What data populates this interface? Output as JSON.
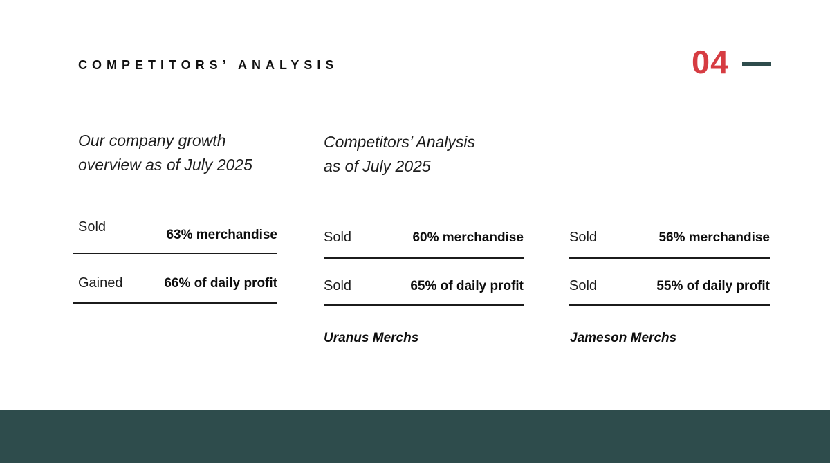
{
  "colors": {
    "accent-red": "#d63c42",
    "teal": "#2e4c4c"
  },
  "header": {
    "title": "COMPETITORS’ ANALYSIS",
    "page_number": "04"
  },
  "columns": [
    {
      "header_line1": "Our company growth",
      "header_line2": "overview as of July 2025",
      "rows": [
        {
          "label": "Sold",
          "value": "63% merchandise"
        },
        {
          "label": "Gained",
          "value": "66% of daily profit"
        }
      ],
      "company_name": ""
    },
    {
      "header_line1": "Competitors’ Analysis",
      "header_line2": "as of July 2025",
      "rows": [
        {
          "label": "Sold",
          "value": "60% merchandise"
        },
        {
          "label": "Sold",
          "value": "65% of daily profit"
        }
      ],
      "company_name": "Uranus Merchs"
    },
    {
      "header_line1": "",
      "header_line2": "",
      "rows": [
        {
          "label": "Sold",
          "value": "56% merchandise"
        },
        {
          "label": "Sold",
          "value": "55% of daily profit"
        }
      ],
      "company_name": "Jameson Merchs"
    }
  ]
}
